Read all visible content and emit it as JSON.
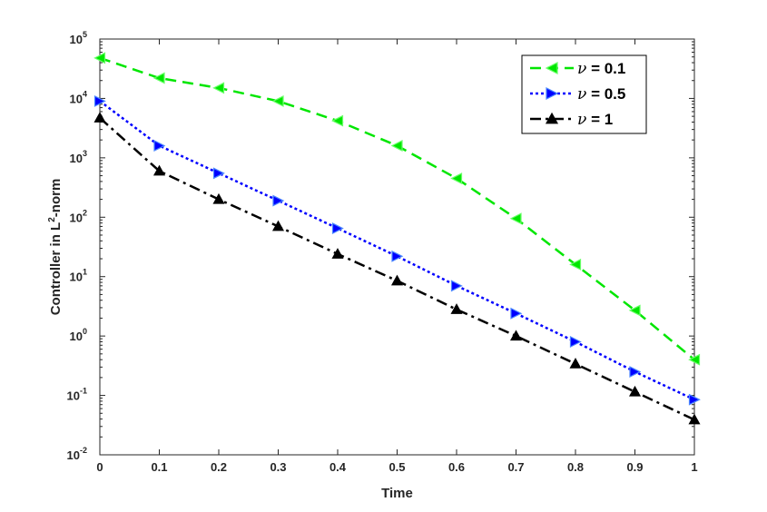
{
  "chart_data": {
    "type": "line",
    "xlabel": "Time",
    "ylabel": "Controller in L",
    "ylabel_sup": "2",
    "ylabel_suffix": "-norm",
    "yscale": "log",
    "xlim": [
      0,
      1
    ],
    "ylim": [
      0.01,
      100000
    ],
    "x_ticks": [
      "0",
      "0.1",
      "0.2",
      "0.3",
      "0.4",
      "0.5",
      "0.6",
      "0.7",
      "0.8",
      "0.9",
      "1"
    ],
    "y_ticks": [
      {
        "base": "10",
        "exp": "-2"
      },
      {
        "base": "10",
        "exp": "-1"
      },
      {
        "base": "10",
        "exp": "0"
      },
      {
        "base": "10",
        "exp": "1"
      },
      {
        "base": "10",
        "exp": "2"
      },
      {
        "base": "10",
        "exp": "3"
      },
      {
        "base": "10",
        "exp": "4"
      },
      {
        "base": "10",
        "exp": "5"
      }
    ],
    "grid": false,
    "legend_position": "top-right",
    "x": [
      0,
      0.1,
      0.2,
      0.3,
      0.4,
      0.5,
      0.6,
      0.7,
      0.8,
      0.9,
      1
    ],
    "series": [
      {
        "name_symbol": "ν",
        "name_suffix": " = 0.1",
        "color": "#00e600",
        "line_style": "dashed",
        "marker": "triangle-left",
        "values": [
          48000,
          22000,
          15000,
          9000,
          4200,
          1600,
          450,
          95,
          16,
          2.7,
          0.4
        ]
      },
      {
        "name_symbol": "ν",
        "name_suffix": " = 0.5",
        "color": "#0000ff",
        "line_style": "dotted",
        "marker": "triangle-right",
        "values": [
          9000,
          1600,
          550,
          190,
          65,
          22,
          7,
          2.4,
          0.8,
          0.25,
          0.085
        ]
      },
      {
        "name_symbol": "ν",
        "name_suffix": " = 1",
        "color": "#000000",
        "line_style": "dashdot",
        "marker": "triangle-up",
        "values": [
          4700,
          600,
          200,
          70,
          24,
          8.5,
          2.8,
          1.0,
          0.34,
          0.115,
          0.039
        ]
      }
    ]
  }
}
